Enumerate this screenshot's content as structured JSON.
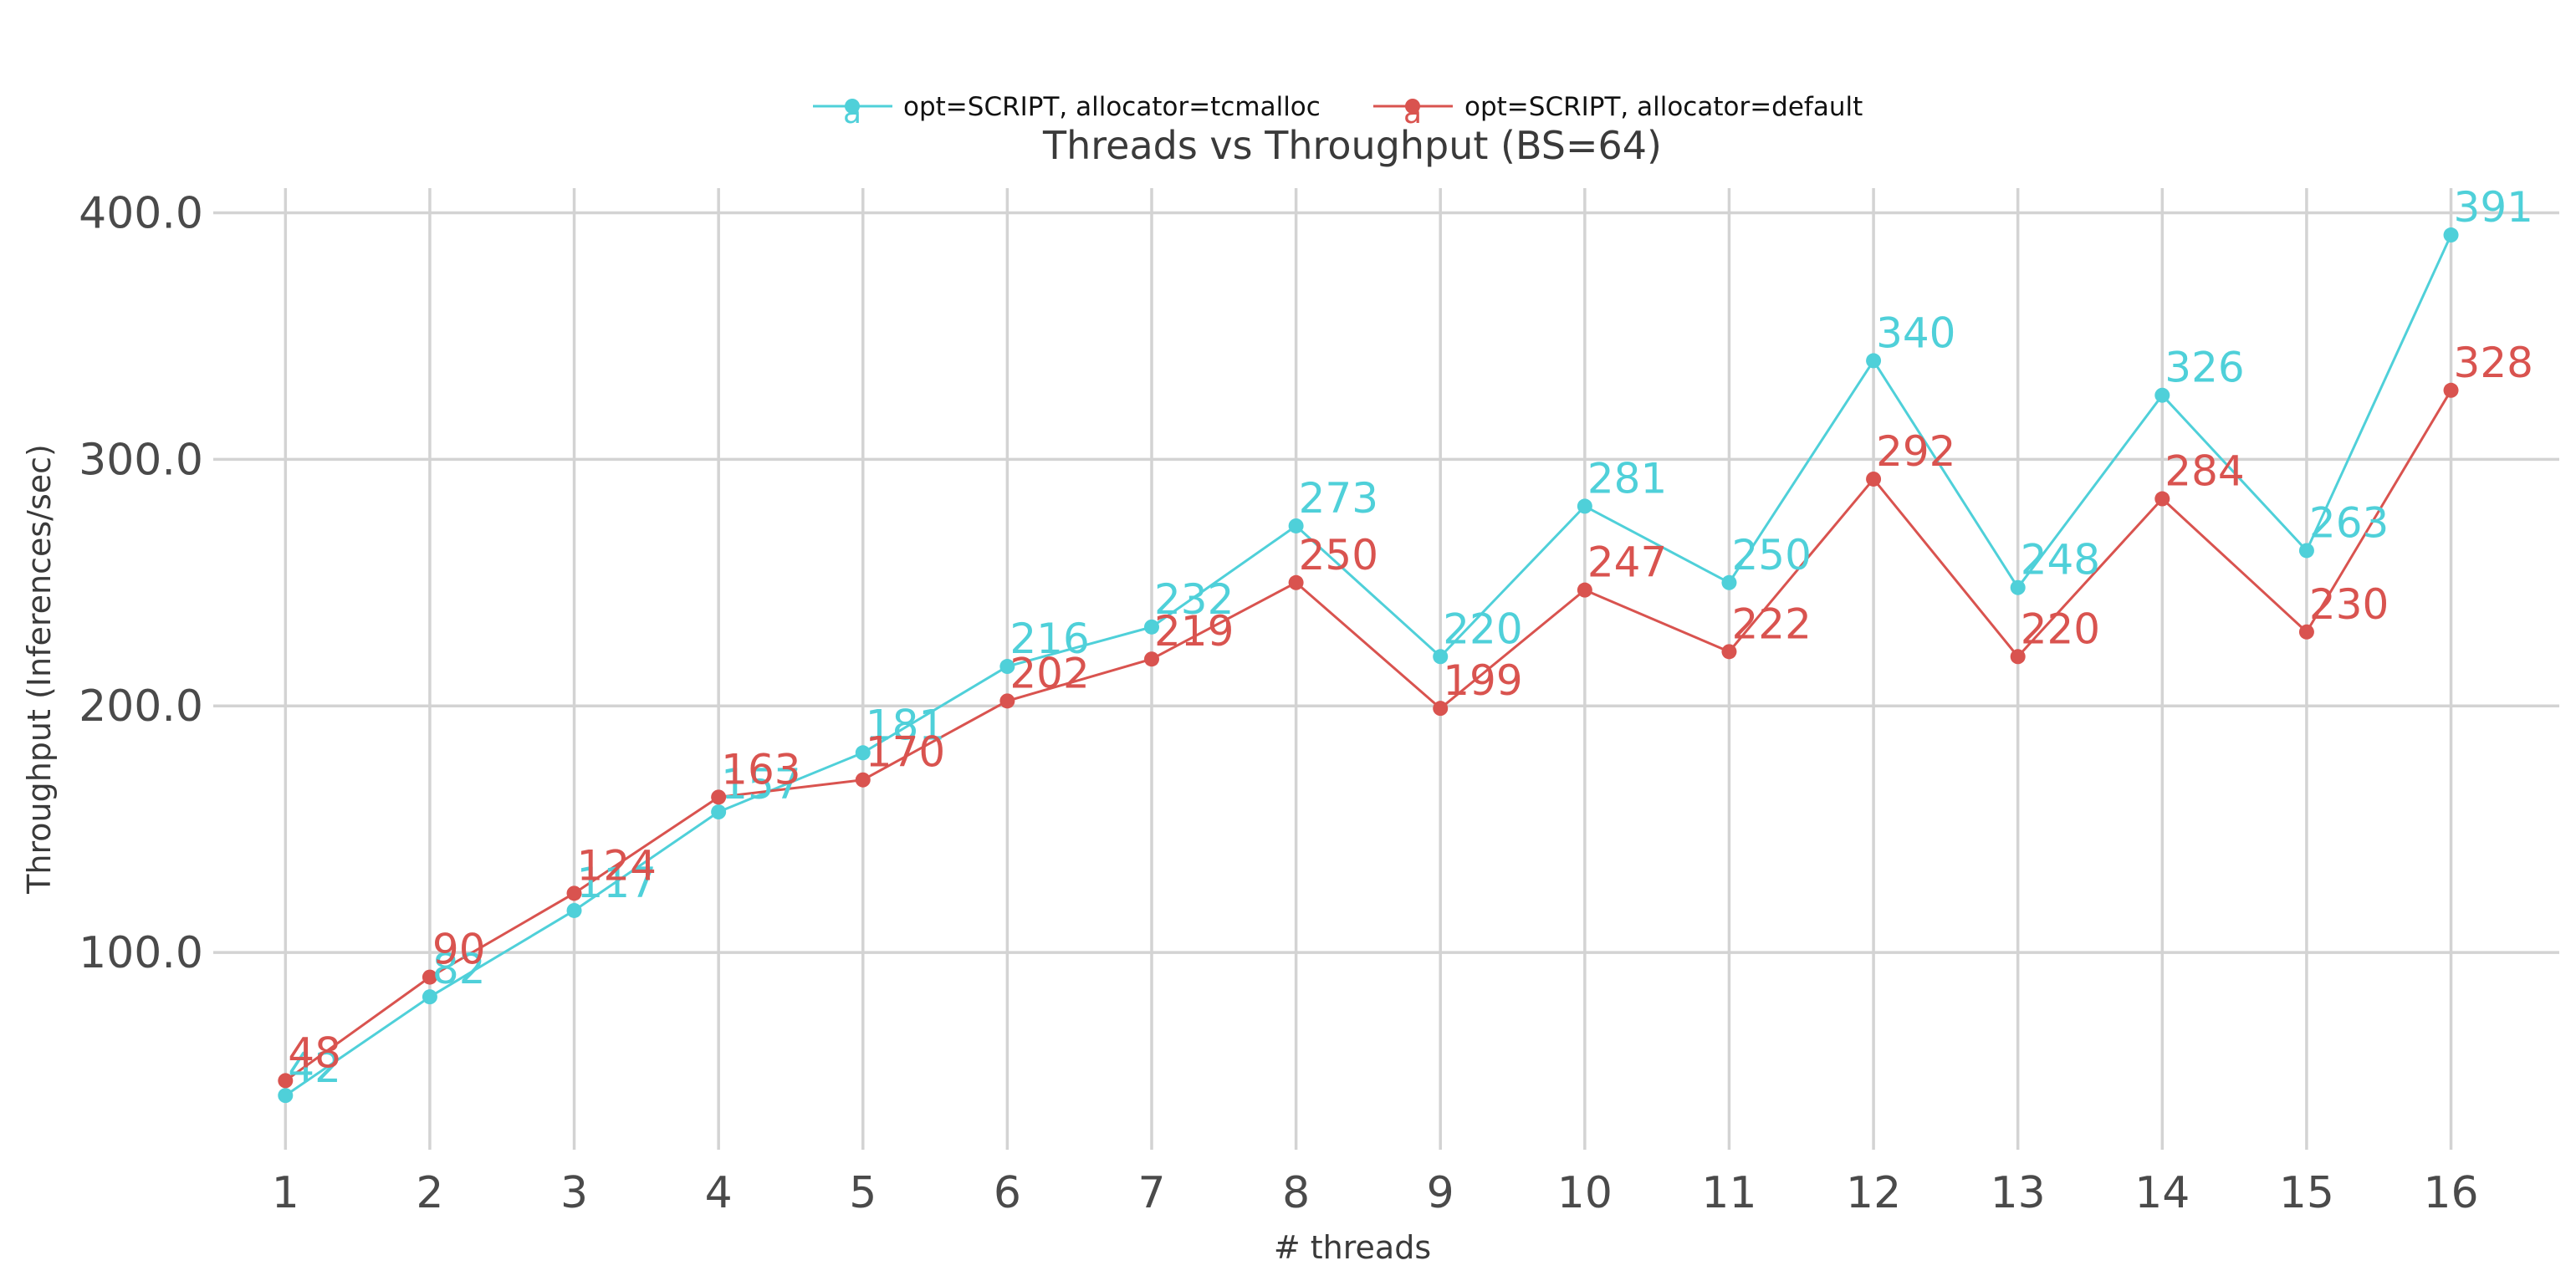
{
  "chart_data": {
    "type": "line",
    "title": "Threads vs Throughput (BS=64)",
    "xlabel": "# threads",
    "ylabel": "Throughput (Inferences/sec)",
    "x": [
      1,
      2,
      3,
      4,
      5,
      6,
      7,
      8,
      9,
      10,
      11,
      12,
      13,
      14,
      15,
      16
    ],
    "x_tick_labels": [
      "1",
      "2",
      "3",
      "4",
      "5",
      "6",
      "7",
      "8",
      "9",
      "10",
      "11",
      "12",
      "13",
      "14",
      "15",
      "16"
    ],
    "y_ticks": [
      100,
      200,
      300,
      400
    ],
    "y_tick_labels": [
      "100.0",
      "200.0",
      "300.0",
      "400.0"
    ],
    "xlim": [
      0.5,
      16.75
    ],
    "ylim": [
      20,
      410
    ],
    "grid": true,
    "legend_position": "top-center",
    "legend_marker_text": "a",
    "series": [
      {
        "name": "opt=SCRIPT, allocator=tcmalloc",
        "color": "#4fd0d9",
        "values": [
          42,
          82,
          117,
          157,
          181,
          216,
          232,
          273,
          220,
          281,
          250,
          340,
          248,
          326,
          263,
          391
        ],
        "labels": [
          "42",
          "82",
          "117",
          "157",
          "181",
          "216",
          "232",
          "273",
          "220",
          "281",
          "250",
          "340",
          "248",
          "326",
          "263",
          "391"
        ]
      },
      {
        "name": "opt=SCRIPT, allocator=default",
        "color": "#d9534f",
        "values": [
          48,
          90,
          124,
          163,
          170,
          202,
          219,
          250,
          199,
          247,
          222,
          292,
          220,
          284,
          230,
          328
        ],
        "labels": [
          "48",
          "90",
          "124",
          "163",
          "170",
          "202",
          "219",
          "250",
          "199",
          "247",
          "222",
          "292",
          "220",
          "284",
          "230",
          "328"
        ]
      }
    ]
  }
}
